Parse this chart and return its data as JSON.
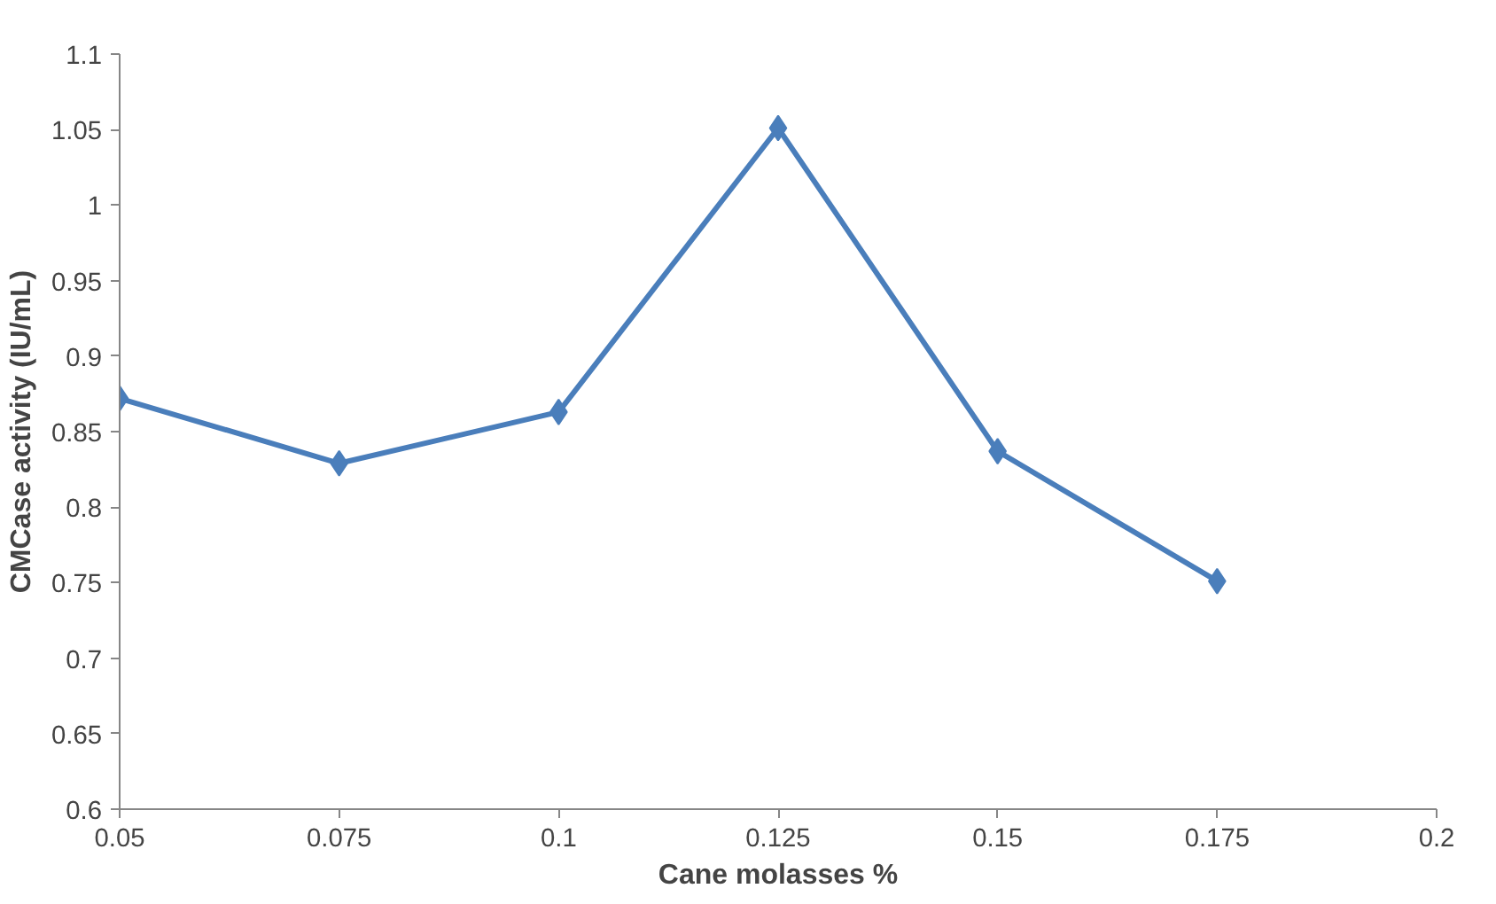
{
  "chart_data": {
    "type": "line",
    "xlabel": "Cane molasses %",
    "ylabel": "CMCase activity (IU/mL)",
    "x": [
      0.05,
      0.075,
      0.1,
      0.125,
      0.15,
      0.175
    ],
    "series": [
      {
        "color": "#4a7ebb",
        "values": [
          0.872,
          0.829,
          0.863,
          1.051,
          0.837,
          0.751
        ]
      }
    ],
    "xlim": [
      0.05,
      0.2
    ],
    "xticks": [
      0.05,
      0.075,
      0.1,
      0.125,
      0.15,
      0.175,
      0.2
    ],
    "ylim": [
      0.6,
      1.1
    ],
    "yticks": [
      0.6,
      0.65,
      0.7,
      0.75,
      0.8,
      0.85,
      0.9,
      0.95,
      1,
      1.05,
      1.1
    ],
    "grid": false,
    "marker": "diamond",
    "line_style": "solid"
  }
}
